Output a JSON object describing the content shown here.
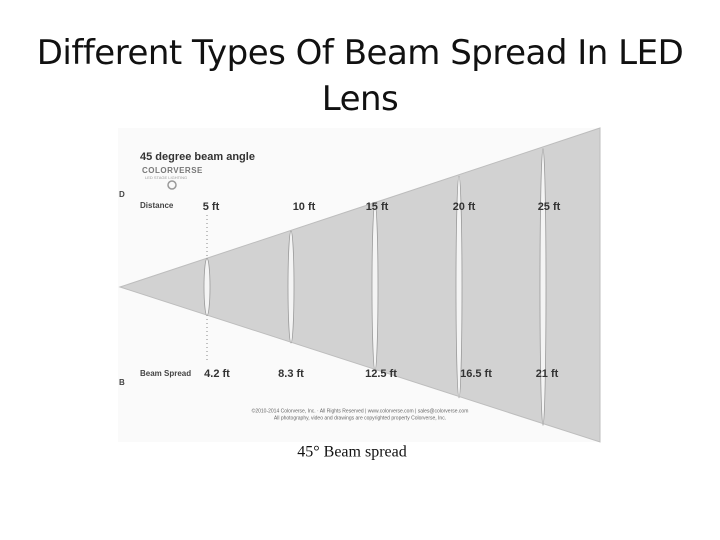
{
  "title": "Different Types Of Beam Spread In LED Lens",
  "diagram": {
    "heading": "45 degree beam angle",
    "logo": {
      "name": "COLORVERSE",
      "tagline": "LED STAGE LIGHTING"
    },
    "distance_marker": "D",
    "distance_label": "Distance",
    "distances": [
      "5 ft",
      "10 ft",
      "15 ft",
      "20 ft",
      "25 ft"
    ],
    "spread_marker": "B",
    "spread_label": "Beam Spread",
    "spreads": [
      "4.2 ft",
      "8.3 ft",
      "12.5 ft",
      "16.5 ft",
      "21 ft"
    ],
    "copyright": [
      "©2010-2014 Colorverse, Inc. · All Rights Reserved | www.colorverse.com | sales@colorverse.com",
      "All photography, video and drawings are copyrighted property Colorverse, Inc."
    ]
  },
  "caption": "45° Beam spread"
}
